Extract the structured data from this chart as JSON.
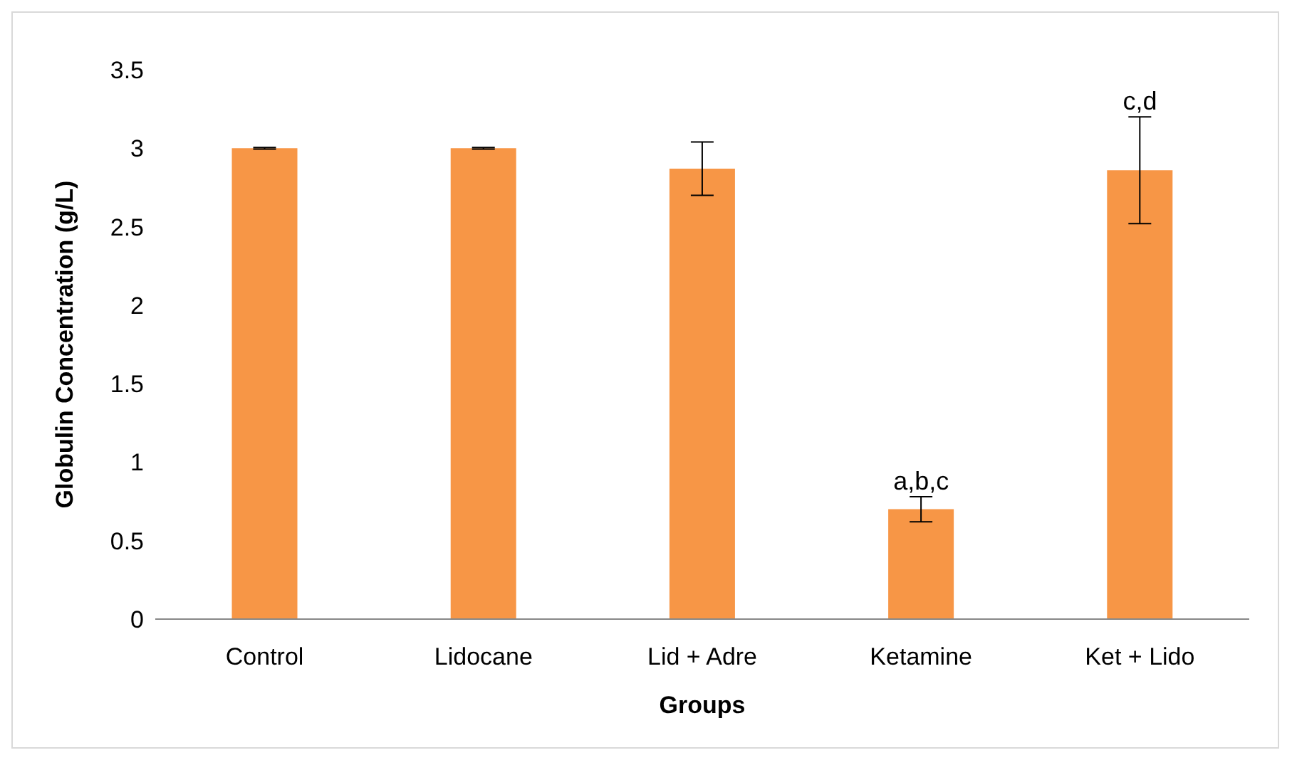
{
  "chart_data": {
    "type": "bar",
    "xlabel": "Groups",
    "ylabel": "Globulin Concentration (g/L)",
    "categories": [
      "Control",
      "Lidocane",
      "Lid + Adre",
      "Ketamine",
      "Ket + Lido"
    ],
    "values": [
      3.0,
      3.0,
      2.87,
      0.7,
      2.86
    ],
    "errors": [
      0.005,
      0.005,
      0.17,
      0.08,
      0.34
    ],
    "color": "#f79646",
    "ylim": [
      0,
      3.5
    ],
    "yticks": [
      0,
      0.5,
      1,
      1.5,
      2,
      2.5,
      3,
      3.5
    ],
    "grid": false,
    "legend": false,
    "annotations": [
      {
        "text": "a,b,c",
        "x": "Ketamine",
        "y": 0.78
      },
      {
        "text": "c,d",
        "x": "Ket + Lido",
        "y": 3.2
      }
    ]
  }
}
